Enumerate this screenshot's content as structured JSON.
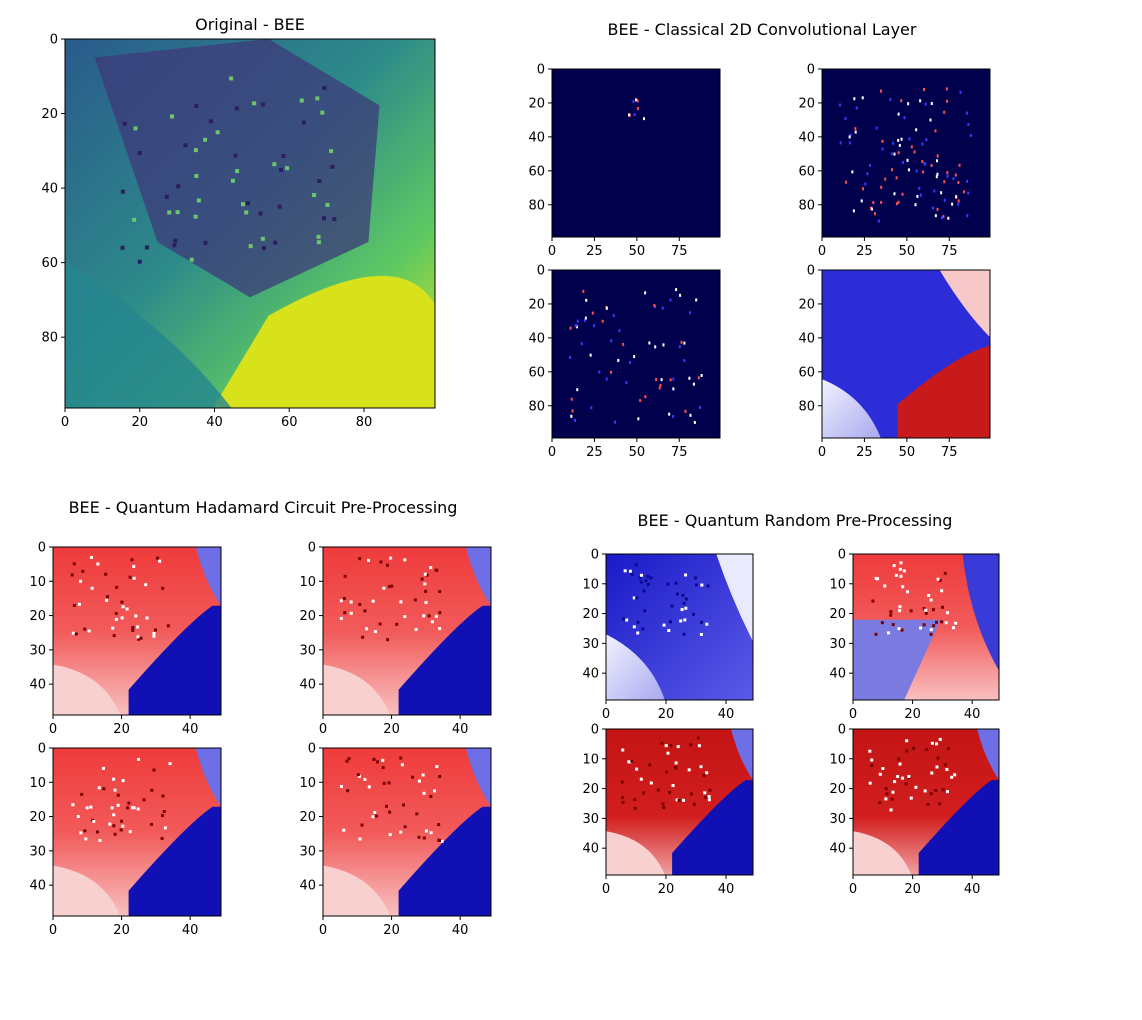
{
  "figure": {
    "background": "#ffffff",
    "titles": {
      "original": "Original - BEE",
      "classical": "BEE - Classical 2D Convolutional Layer",
      "hadamard": "BEE - Quantum Hadamard Circuit Pre-Processing",
      "random": "BEE - Quantum Random Pre-Processing"
    }
  },
  "chart_data": [
    {
      "type": "heatmap",
      "title": "Original - BEE",
      "colormap": "viridis",
      "image_size": [
        100,
        100
      ],
      "xlim": [
        0,
        99
      ],
      "ylim": [
        99,
        0
      ],
      "xticks": [
        0,
        20,
        40,
        60,
        80
      ],
      "yticks": [
        0,
        20,
        40,
        60,
        80
      ],
      "style": "original"
    },
    {
      "type": "heatmap",
      "title": "BEE - Classical 2D Convolutional Layer",
      "colormap": "seismic",
      "panels": [
        {
          "image_size": [
            100,
            100
          ],
          "xlim": [
            0,
            99
          ],
          "ylim": [
            99,
            0
          ],
          "xticks": [
            0,
            25,
            50,
            75
          ],
          "yticks": [
            0,
            20,
            40,
            60,
            80
          ],
          "style": "sparse"
        },
        {
          "image_size": [
            100,
            100
          ],
          "xlim": [
            0,
            99
          ],
          "ylim": [
            99,
            0
          ],
          "xticks": [
            0,
            25,
            50,
            75
          ],
          "yticks": [
            0,
            20,
            40,
            60,
            80
          ],
          "style": "edges"
        },
        {
          "image_size": [
            100,
            100
          ],
          "xlim": [
            0,
            99
          ],
          "ylim": [
            99,
            0
          ],
          "xticks": [
            0,
            25,
            50,
            75
          ],
          "yticks": [
            0,
            20,
            40,
            60,
            80
          ],
          "style": "edges-light"
        },
        {
          "image_size": [
            100,
            100
          ],
          "xlim": [
            0,
            99
          ],
          "ylim": [
            99,
            0
          ],
          "xticks": [
            0,
            25,
            50,
            75
          ],
          "yticks": [
            0,
            20,
            40,
            60,
            80
          ],
          "style": "signed"
        }
      ]
    },
    {
      "type": "heatmap",
      "title": "BEE - Quantum Hadamard Circuit Pre-Processing",
      "colormap": "seismic",
      "panels": [
        {
          "image_size": [
            50,
            50
          ],
          "xlim": [
            0,
            49
          ],
          "ylim": [
            49,
            0
          ],
          "xticks": [
            0,
            20,
            40
          ],
          "yticks": [
            0,
            10,
            20,
            30,
            40
          ],
          "style": "red"
        },
        {
          "image_size": [
            50,
            50
          ],
          "xlim": [
            0,
            49
          ],
          "ylim": [
            49,
            0
          ],
          "xticks": [
            0,
            20,
            40
          ],
          "yticks": [
            0,
            10,
            20,
            30,
            40
          ],
          "style": "red"
        },
        {
          "image_size": [
            50,
            50
          ],
          "xlim": [
            0,
            49
          ],
          "ylim": [
            49,
            0
          ],
          "xticks": [
            0,
            20,
            40
          ],
          "yticks": [
            0,
            10,
            20,
            30,
            40
          ],
          "style": "red"
        },
        {
          "image_size": [
            50,
            50
          ],
          "xlim": [
            0,
            49
          ],
          "ylim": [
            49,
            0
          ],
          "xticks": [
            0,
            20,
            40
          ],
          "yticks": [
            0,
            10,
            20,
            30,
            40
          ],
          "style": "red"
        }
      ]
    },
    {
      "type": "heatmap",
      "title": "BEE - Quantum Random Pre-Processing",
      "colormap": "seismic",
      "panels": [
        {
          "image_size": [
            50,
            50
          ],
          "xlim": [
            0,
            49
          ],
          "ylim": [
            49,
            0
          ],
          "xticks": [
            0,
            20,
            40
          ],
          "yticks": [
            0,
            10,
            20,
            30,
            40
          ],
          "style": "blue"
        },
        {
          "image_size": [
            50,
            50
          ],
          "xlim": [
            0,
            49
          ],
          "ylim": [
            49,
            0
          ],
          "xticks": [
            0,
            20,
            40
          ],
          "yticks": [
            0,
            10,
            20,
            30,
            40
          ],
          "style": "mixed"
        },
        {
          "image_size": [
            50,
            50
          ],
          "xlim": [
            0,
            49
          ],
          "ylim": [
            49,
            0
          ],
          "xticks": [
            0,
            20,
            40
          ],
          "yticks": [
            0,
            10,
            20,
            30,
            40
          ],
          "style": "darkred"
        },
        {
          "image_size": [
            50,
            50
          ],
          "xlim": [
            0,
            49
          ],
          "ylim": [
            49,
            0
          ],
          "xticks": [
            0,
            20,
            40
          ],
          "yticks": [
            0,
            10,
            20,
            30,
            40
          ],
          "style": "darkred"
        }
      ]
    }
  ]
}
